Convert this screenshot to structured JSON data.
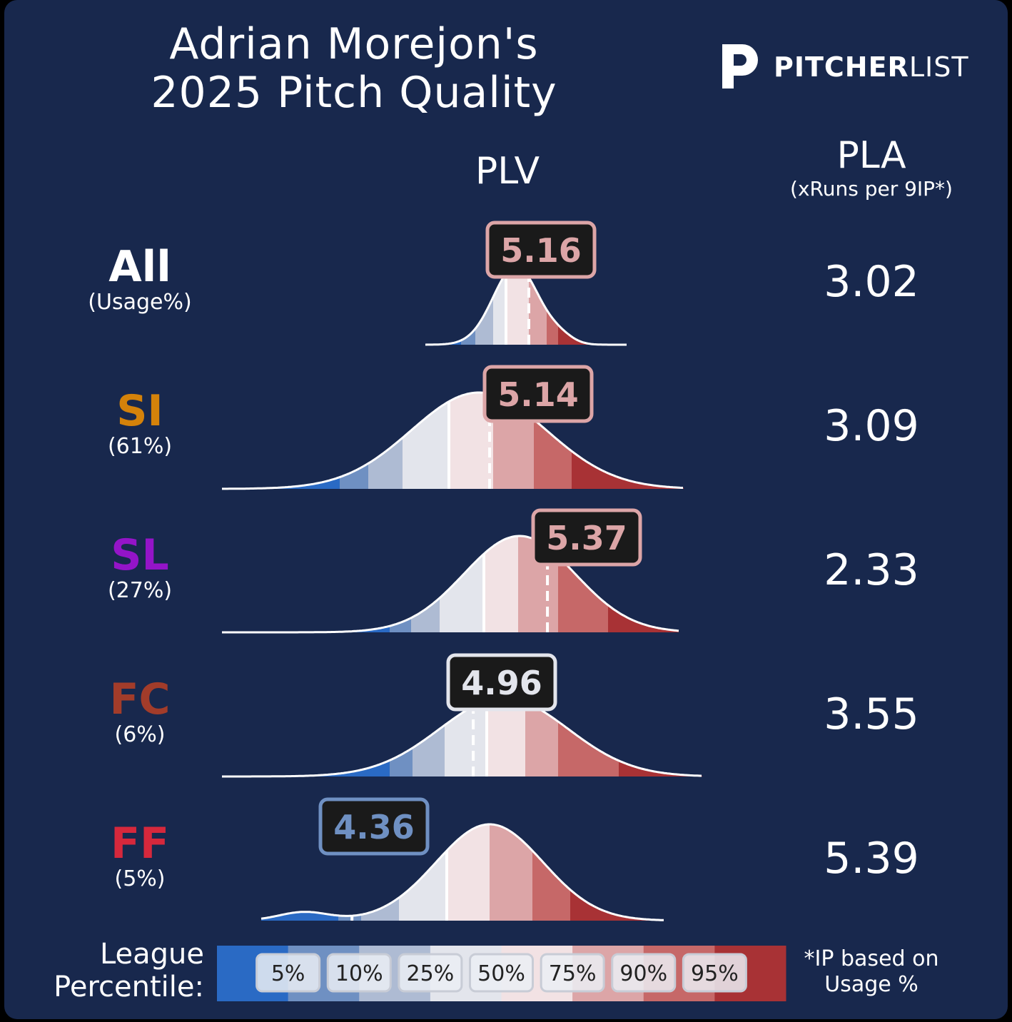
{
  "title_line1": "Adrian Morejon's",
  "title_line2": "2025 Pitch Quality",
  "logo": {
    "bold": "PITCHER",
    "light": "LIST",
    "icon": "pitcherlist-p-icon"
  },
  "headers": {
    "plv": "PLV",
    "pla": "PLA",
    "pla_sub": "(xRuns per 9IP*)"
  },
  "legend": {
    "label_line1": "League",
    "label_line2": "Percentile:",
    "ticks": [
      "5%",
      "10%",
      "25%",
      "50%",
      "75%",
      "90%",
      "95%"
    ],
    "colors": [
      "#2a6ac4",
      "#6f90c2",
      "#aebbd3",
      "#e3e5ec",
      "#f2e2e4",
      "#dca5a7",
      "#c66868",
      "#a83235"
    ]
  },
  "footnote_line1": "*IP based on",
  "footnote_line2": "Usage %",
  "pitch_colors": {
    "All": "#ffffff",
    "SI": "#d4820a",
    "SL": "#9414c8",
    "FC": "#a23c2a",
    "FF": "#d6283c"
  },
  "chart_data": {
    "type": "density",
    "percentile_scale": [
      "5%",
      "10%",
      "25%",
      "50%",
      "75%",
      "90%",
      "95%"
    ],
    "rows": [
      {
        "pitch": "All",
        "usage": "(Usage%)",
        "plv": "5.16",
        "pla": "3.02",
        "plv_percentile": 75
      },
      {
        "pitch": "SI",
        "usage": "(61%)",
        "plv": "5.14",
        "pla": "3.09",
        "plv_percentile": 73
      },
      {
        "pitch": "SL",
        "usage": "(27%)",
        "plv": "5.37",
        "pla": "2.33",
        "plv_percentile": 86
      },
      {
        "pitch": "FC",
        "usage": "(6%)",
        "plv": "4.96",
        "pla": "3.55",
        "plv_percentile": 42
      },
      {
        "pitch": "FF",
        "usage": "(5%)",
        "plv": "4.36",
        "pla": "5.39",
        "plv_percentile": 8
      }
    ]
  }
}
